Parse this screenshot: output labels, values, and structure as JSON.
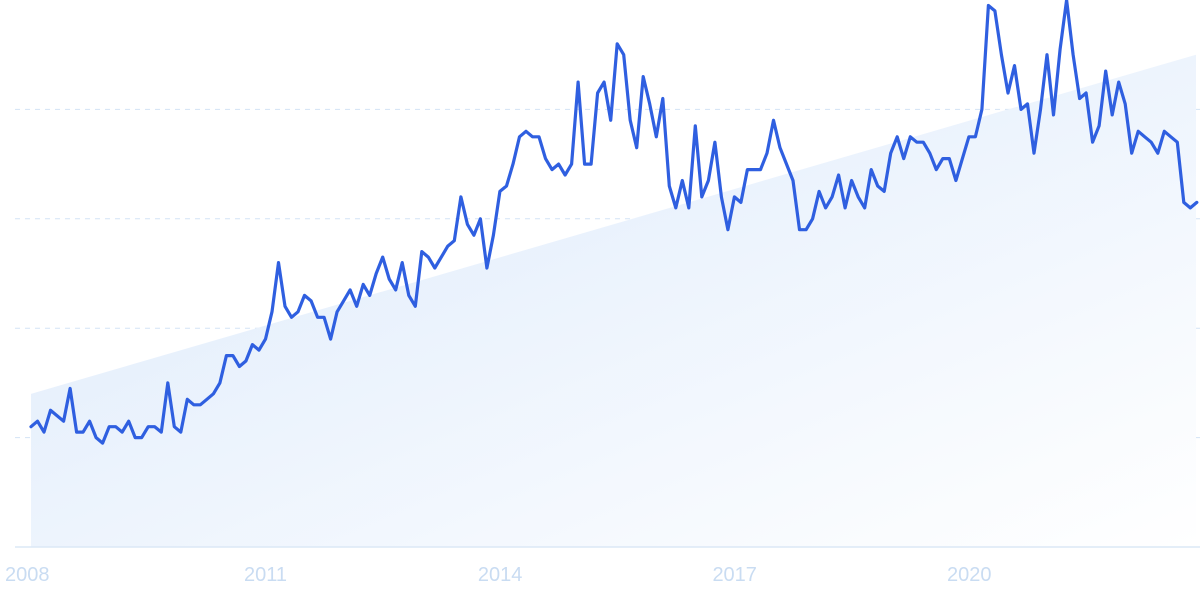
{
  "chart_data": {
    "type": "line",
    "title": "",
    "xlabel": "",
    "ylabel": "",
    "x_tick_labels": [
      "2008",
      "2011",
      "2014",
      "2017",
      "2020"
    ],
    "x_range": [
      2008.0,
      2022.9
    ],
    "ylim": [
      0,
      100
    ],
    "grid": "horizontal dashed",
    "legend": "none",
    "colors": {
      "line": "#2f5fe0",
      "trend_fill_top": "#dbe9fb",
      "trend_fill_bottom": "#ffffff",
      "grid": "#d3e3f5",
      "tick_label": "#c9dcf2",
      "axis": "#dce8f6"
    },
    "trend_band": {
      "x": [
        2008.0,
        2022.9
      ],
      "y": [
        28,
        90
      ]
    },
    "series": [
      {
        "x_start": 2008.0,
        "x_step": 0.0833,
        "values": [
          22,
          23,
          21,
          25,
          24,
          23,
          29,
          21,
          21,
          23,
          20,
          19,
          22,
          22,
          21,
          23,
          20,
          20,
          22,
          22,
          21,
          30,
          22,
          21,
          27,
          26,
          26,
          27,
          28,
          30,
          35,
          35,
          33,
          34,
          37,
          36,
          38,
          43,
          52,
          44,
          42,
          43,
          46,
          45,
          42,
          42,
          38,
          43,
          45,
          47,
          44,
          48,
          46,
          50,
          53,
          49,
          47,
          52,
          46,
          44,
          54,
          53,
          51,
          53,
          55,
          56,
          64,
          59,
          57,
          60,
          51,
          57,
          65,
          66,
          70,
          75,
          76,
          75,
          75,
          71,
          69,
          70,
          68,
          70,
          85,
          70,
          70,
          83,
          85,
          78,
          92,
          90,
          78,
          73,
          86,
          81,
          75,
          82,
          66,
          62,
          67,
          62,
          77,
          64,
          67,
          74,
          64,
          58,
          64,
          63,
          69,
          69,
          69,
          72,
          78,
          73,
          70,
          67,
          58,
          58,
          60,
          65,
          62,
          64,
          68,
          62,
          67,
          64,
          62,
          69,
          66,
          65,
          72,
          75,
          71,
          75,
          74,
          74,
          72,
          69,
          71,
          71,
          67,
          71,
          75,
          75,
          80,
          99,
          98,
          90,
          83,
          88,
          80,
          81,
          72,
          80,
          90,
          79,
          91,
          100,
          90,
          82,
          83,
          74,
          77,
          87,
          79,
          85,
          81,
          72,
          76,
          75,
          74,
          72,
          76,
          75,
          74,
          63,
          62,
          63
        ]
      }
    ]
  }
}
